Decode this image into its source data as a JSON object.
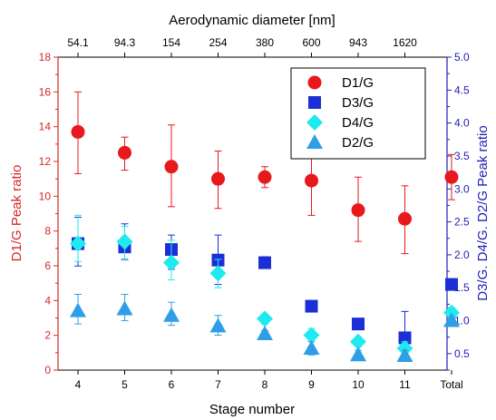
{
  "chart_data": {
    "type": "scatter",
    "categories": [
      "4",
      "5",
      "6",
      "7",
      "8",
      "9",
      "10",
      "11",
      "Total"
    ],
    "xlabel": "Stage number",
    "top_axis": {
      "title": "Aerodynamic diameter [nm]",
      "tick_labels": [
        "54.1",
        "94.3",
        "154",
        "254",
        "380",
        "600",
        "943",
        "1620"
      ]
    },
    "left_axis": {
      "label": "D1/G Peak ratio",
      "ylim": [
        0,
        18
      ],
      "ticks": [
        "0",
        "2",
        "4",
        "6",
        "8",
        "10",
        "12",
        "14",
        "16",
        "18"
      ],
      "color": "#d62728"
    },
    "right_axis": {
      "label": "D3/G. D4/G. D2/G Peak ratio",
      "ylim": [
        0.25,
        5.0
      ],
      "ticks": [
        "0.5",
        "1.0",
        "1.5",
        "2.0",
        "2.5",
        "3.0",
        "3.5",
        "4.0",
        "4.5",
        "5.0"
      ],
      "color": "#1f1fb4"
    },
    "legend_position": "top-right",
    "series": [
      {
        "name": "D1/G",
        "axis": "left",
        "marker": "circle",
        "color": "#e8191c",
        "values": [
          13.7,
          12.5,
          11.7,
          11.0,
          11.1,
          10.9,
          9.2,
          8.7,
          11.1
        ],
        "err_low": [
          11.3,
          11.5,
          9.4,
          9.3,
          10.5,
          8.9,
          7.4,
          6.7,
          9.8
        ],
        "err_high": [
          16.0,
          13.4,
          14.1,
          12.6,
          11.7,
          12.8,
          11.1,
          10.6,
          12.4
        ]
      },
      {
        "name": "D3/G",
        "axis": "right",
        "marker": "square",
        "color": "#1c2fd6",
        "values": [
          2.17,
          2.12,
          2.08,
          1.92,
          1.88,
          1.22,
          0.95,
          0.74,
          1.55
        ],
        "err_low": [
          1.83,
          1.93,
          1.78,
          1.55,
          1.8,
          1.22,
          0.88,
          0.4,
          1.47
        ],
        "err_high": [
          2.57,
          2.47,
          2.3,
          2.3,
          1.97,
          1.22,
          1.02,
          1.14,
          1.62
        ]
      },
      {
        "name": "D4/G",
        "axis": "right",
        "marker": "diamond",
        "color": "#1eeaf0",
        "values": [
          2.17,
          2.2,
          1.88,
          1.72,
          1.03,
          0.78,
          0.68,
          0.58,
          1.12
        ],
        "err_low": [
          1.9,
          1.92,
          1.62,
          1.5,
          0.95,
          0.68,
          0.62,
          0.5,
          1.05
        ],
        "err_high": [
          2.6,
          2.43,
          2.22,
          1.93,
          1.1,
          0.88,
          0.75,
          0.68,
          1.2
        ]
      },
      {
        "name": "D2/G",
        "axis": "right",
        "marker": "triangle",
        "color": "#2e9fe6",
        "values": [
          1.15,
          1.18,
          1.08,
          0.92,
          0.8,
          0.58,
          0.48,
          0.47,
          1.0
        ],
        "err_low": [
          0.95,
          1.0,
          0.93,
          0.78,
          0.75,
          0.48,
          0.42,
          0.4,
          0.95
        ],
        "err_high": [
          1.4,
          1.4,
          1.28,
          1.08,
          0.85,
          0.68,
          0.55,
          0.55,
          1.05
        ]
      }
    ]
  }
}
